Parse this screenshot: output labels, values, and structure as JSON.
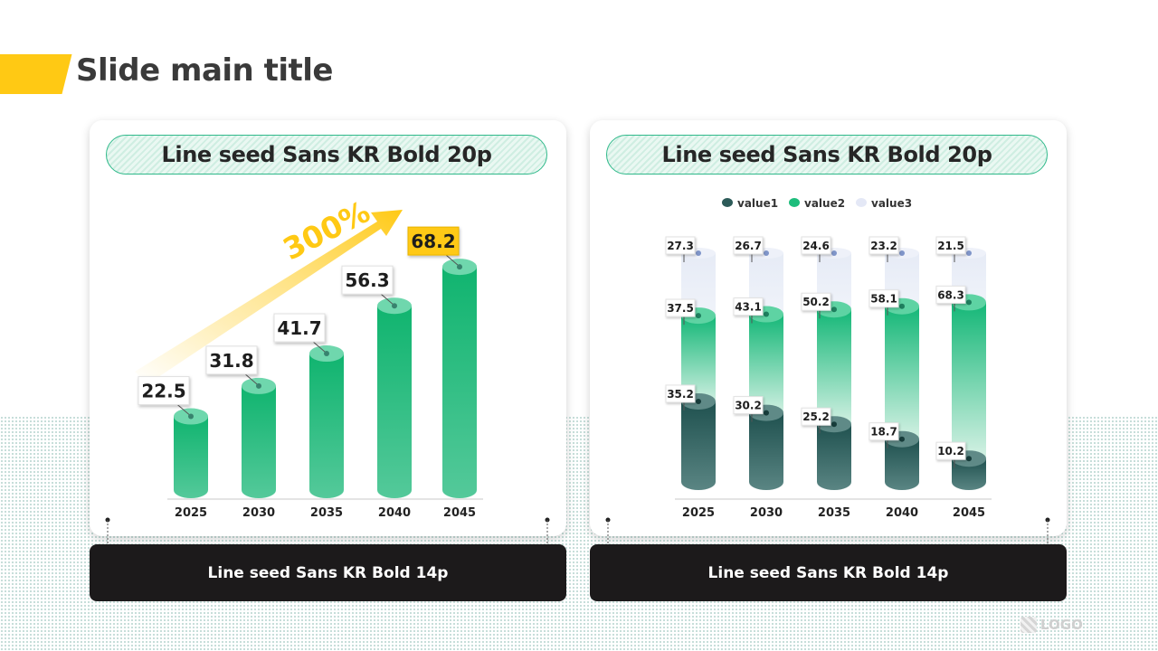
{
  "slide": {
    "title": "Slide main title",
    "logo": "LOGO"
  },
  "left_card": {
    "heading": "Line seed Sans KR Bold 20p",
    "caption": "Line seed Sans KR Bold 14p",
    "growth_label": "300%"
  },
  "right_card": {
    "heading": "Line seed Sans KR Bold 20p",
    "caption": "Line seed Sans KR Bold 14p"
  },
  "colors": {
    "accent": "#ffc914",
    "green": "#1ebd7c",
    "dark_teal": "#2c5a58",
    "light_lavender": "#e6ebf6",
    "caption_bg": "#1c1a1b"
  },
  "chart_data": [
    {
      "type": "bar",
      "categories": [
        "2025",
        "2030",
        "2035",
        "2040",
        "2045"
      ],
      "values": [
        22.5,
        31.8,
        41.7,
        56.3,
        68.2
      ],
      "highlight_index": 4,
      "title": "",
      "xlabel": "",
      "ylabel": "",
      "ylim": [
        0,
        70
      ],
      "grid": false
    },
    {
      "type": "bar",
      "stacked": true,
      "categories": [
        "2025",
        "2030",
        "2035",
        "2040",
        "2045"
      ],
      "series": [
        {
          "name": "value1",
          "values": [
            35.2,
            30.2,
            25.2,
            18.7,
            10.2
          ]
        },
        {
          "name": "value2",
          "values": [
            37.5,
            43.1,
            50.2,
            58.1,
            68.3
          ]
        },
        {
          "name": "value3",
          "values": [
            27.3,
            26.7,
            24.6,
            23.2,
            21.5
          ]
        }
      ],
      "legend": "top-center",
      "title": "",
      "xlabel": "",
      "ylabel": "",
      "ylim": [
        0,
        100
      ],
      "grid": false
    }
  ]
}
